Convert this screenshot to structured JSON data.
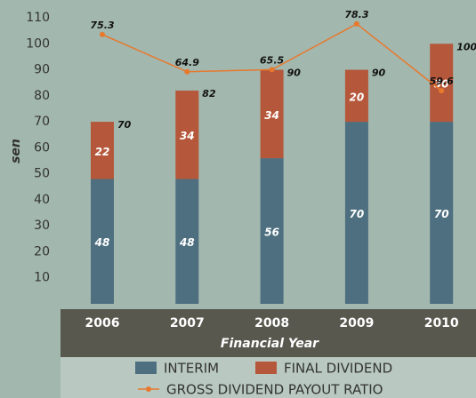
{
  "chart_data": {
    "type": "bar",
    "y_label": "sen",
    "x_label": "Financial Year",
    "categories": [
      "2006",
      "2007",
      "2008",
      "2009",
      "2010"
    ],
    "series": [
      {
        "name": "INTERIM",
        "color": "#4d6f7f",
        "values": [
          48,
          48,
          56,
          70,
          70
        ]
      },
      {
        "name": "FINAL DIVIDEND",
        "color": "#b5573a",
        "values": [
          22,
          34,
          34,
          20,
          30
        ]
      },
      {
        "name": "GROSS DIVIDEND PAYOUT RATIO",
        "type": "line",
        "axis": "y2",
        "color": "#e8782c",
        "values": [
          75.3,
          64.9,
          65.5,
          78.3,
          59.6
        ]
      }
    ],
    "totals": [
      70,
      82,
      90,
      90,
      100
    ],
    "ylim": [
      0,
      110
    ],
    "yticks": [
      10,
      20,
      30,
      40,
      50,
      60,
      70,
      80,
      90,
      100,
      110
    ],
    "y2lim": [
      0,
      80
    ],
    "grid": false
  }
}
